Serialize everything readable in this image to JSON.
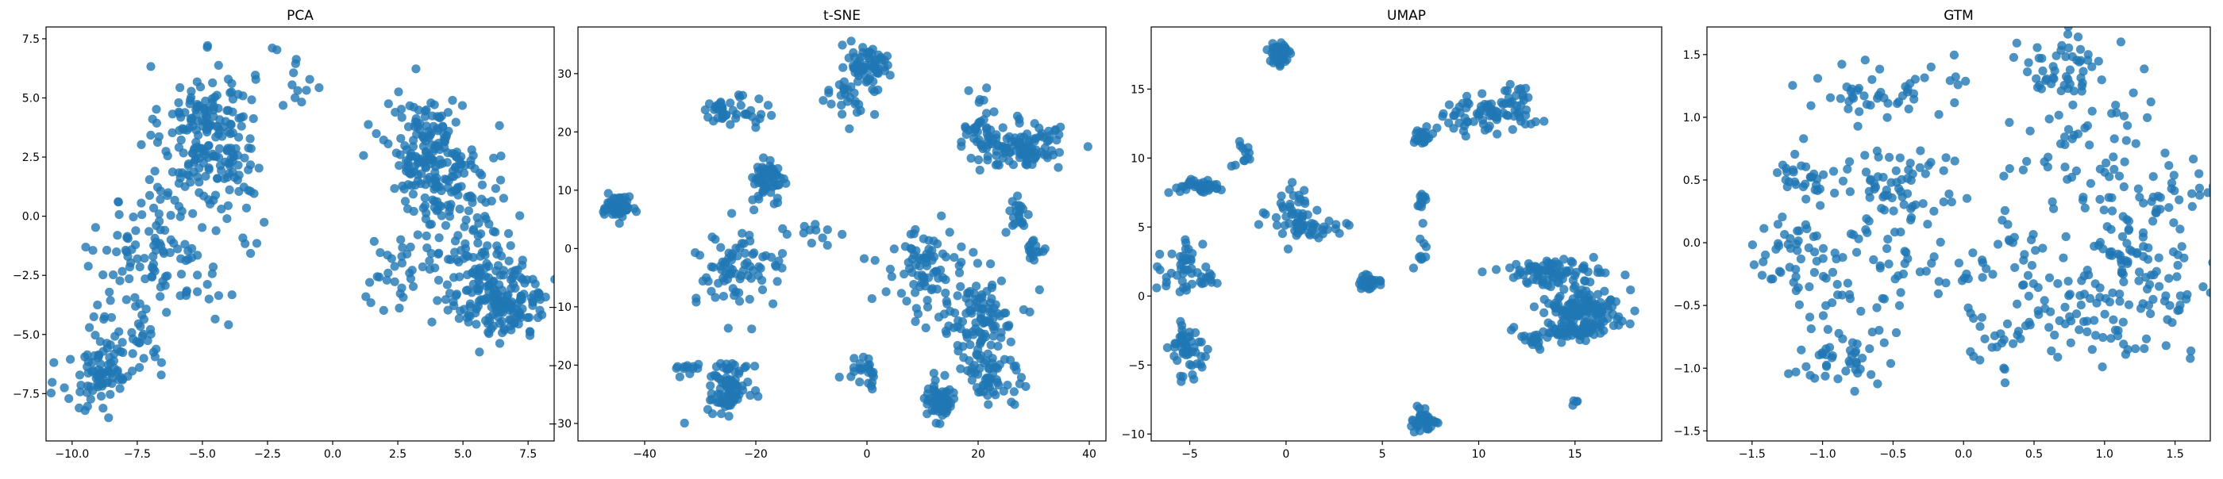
{
  "figure": {
    "panels": [
      "PCA",
      "t-SNE",
      "UMAP",
      "GTM"
    ]
  },
  "colors": {
    "points": "#1f77b4",
    "axes": "#000000",
    "background": "#ffffff"
  },
  "chart_data": [
    {
      "type": "scatter",
      "title": "PCA",
      "xlabel": "",
      "ylabel": "",
      "xlim": [
        -11,
        8.5
      ],
      "ylim": [
        -9.5,
        8
      ],
      "xticks": [
        -10.0,
        -7.5,
        -5.0,
        -2.5,
        0.0,
        2.5,
        5.0,
        7.5
      ],
      "xtick_labels": [
        "−10.0",
        "−7.5",
        "−5.0",
        "−2.5",
        "0.0",
        "2.5",
        "5.0",
        "7.5"
      ],
      "yticks": [
        -7.5,
        -5.0,
        -2.5,
        0.0,
        2.5,
        5.0,
        7.5
      ],
      "ytick_labels": [
        "−7.5",
        "−5.0",
        "−2.5",
        "0.0",
        "2.5",
        "5.0",
        "7.5"
      ],
      "grid": false,
      "clusters": [
        {
          "cx": -4.8,
          "cy": 3.6,
          "sx": 0.9,
          "sy": 1.4,
          "n": 180
        },
        {
          "cx": -6.5,
          "cy": -1.5,
          "sx": 1.2,
          "sy": 1.8,
          "n": 120
        },
        {
          "cx": -9.0,
          "cy": -6.8,
          "sx": 0.7,
          "sy": 0.8,
          "n": 70
        },
        {
          "cx": -7.7,
          "cy": -4.8,
          "sx": 0.9,
          "sy": 1.2,
          "n": 40
        },
        {
          "cx": -3.5,
          "cy": 0.5,
          "sx": 0.7,
          "sy": 1.5,
          "n": 20
        },
        {
          "cx": -1.4,
          "cy": 5.4,
          "sx": 0.5,
          "sy": 0.9,
          "n": 12
        },
        {
          "cx": 3.8,
          "cy": 2.6,
          "sx": 0.9,
          "sy": 1.2,
          "n": 190
        },
        {
          "cx": 5.2,
          "cy": -1.0,
          "sx": 0.9,
          "sy": 1.4,
          "n": 90
        },
        {
          "cx": 6.5,
          "cy": -3.5,
          "sx": 0.9,
          "sy": 0.8,
          "n": 170
        },
        {
          "cx": 2.6,
          "cy": -2.2,
          "sx": 0.6,
          "sy": 0.9,
          "n": 30
        }
      ]
    },
    {
      "type": "scatter",
      "title": "t-SNE",
      "xlabel": "",
      "ylabel": "",
      "xlim": [
        -52,
        43
      ],
      "ylim": [
        -33,
        38
      ],
      "xticks": [
        -40,
        -20,
        0,
        20,
        40
      ],
      "xtick_labels": [
        "−40",
        "−20",
        "0",
        "20",
        "40"
      ],
      "yticks": [
        -30,
        -20,
        -10,
        0,
        10,
        20,
        30
      ],
      "ytick_labels": [
        "−30",
        "−20",
        "−10",
        "0",
        "10",
        "20",
        "30"
      ],
      "grid": false,
      "clusters": [
        {
          "cx": -45,
          "cy": 7,
          "sx": 1.2,
          "sy": 1.0,
          "n": 60
        },
        {
          "cx": -25,
          "cy": 23.5,
          "sx": 2.8,
          "sy": 1.2,
          "n": 45
        },
        {
          "cx": -17.5,
          "cy": 12,
          "sx": 1.4,
          "sy": 1.6,
          "n": 60
        },
        {
          "cx": -3,
          "cy": 26,
          "sx": 2.2,
          "sy": 2.4,
          "n": 30
        },
        {
          "cx": 0,
          "cy": 31.5,
          "sx": 2.0,
          "sy": 2.0,
          "n": 60
        },
        {
          "cx": 20,
          "cy": 21.5,
          "sx": 1.5,
          "sy": 2.5,
          "n": 30
        },
        {
          "cx": 28,
          "cy": 17.5,
          "sx": 4.5,
          "sy": 2.0,
          "n": 110
        },
        {
          "cx": -23,
          "cy": -4,
          "sx": 4.0,
          "sy": 3.2,
          "n": 80
        },
        {
          "cx": -25,
          "cy": -23.5,
          "sx": 2.0,
          "sy": 2.3,
          "n": 80
        },
        {
          "cx": -31,
          "cy": -20.5,
          "sx": 2.5,
          "sy": 0.6,
          "n": 12
        },
        {
          "cx": 0,
          "cy": -21,
          "sx": 1.2,
          "sy": 1.2,
          "n": 25
        },
        {
          "cx": 10,
          "cy": -4,
          "sx": 4.0,
          "sy": 3.5,
          "n": 80
        },
        {
          "cx": 20,
          "cy": -12,
          "sx": 3.5,
          "sy": 3.5,
          "n": 100
        },
        {
          "cx": 13,
          "cy": -26,
          "sx": 1.6,
          "sy": 1.8,
          "n": 60
        },
        {
          "cx": 22,
          "cy": -22,
          "sx": 2.8,
          "sy": 3.0,
          "n": 60
        },
        {
          "cx": 27,
          "cy": 6,
          "sx": 1.0,
          "sy": 2.0,
          "n": 20
        },
        {
          "cx": 30.5,
          "cy": -0.5,
          "sx": 0.8,
          "sy": 1.2,
          "n": 15
        },
        {
          "cx": -11,
          "cy": 2,
          "sx": 4.0,
          "sy": 1.0,
          "n": 12
        }
      ]
    },
    {
      "type": "scatter",
      "title": "UMAP",
      "xlabel": "",
      "ylabel": "",
      "xlim": [
        -7,
        19.5
      ],
      "ylim": [
        -10.5,
        19.5
      ],
      "xticks": [
        -5,
        0,
        5,
        10,
        15
      ],
      "xtick_labels": [
        "−5",
        "0",
        "5",
        "10",
        "15"
      ],
      "yticks": [
        -10,
        -5,
        0,
        5,
        10,
        15
      ],
      "ytick_labels": [
        "−10",
        "−5",
        "0",
        "5",
        "10",
        "15"
      ],
      "grid": false,
      "clusters": [
        {
          "cx": -0.3,
          "cy": 17.5,
          "sx": 0.3,
          "sy": 0.5,
          "n": 60
        },
        {
          "cx": 9.5,
          "cy": 13.0,
          "sx": 1.0,
          "sy": 0.7,
          "n": 50
        },
        {
          "cx": 11.8,
          "cy": 13.6,
          "sx": 0.6,
          "sy": 0.8,
          "n": 40
        },
        {
          "cx": -2.2,
          "cy": 10.2,
          "sx": 0.3,
          "sy": 0.6,
          "n": 12
        },
        {
          "cx": 7.0,
          "cy": 11.5,
          "sx": 0.3,
          "sy": 0.3,
          "n": 20
        },
        {
          "cx": -4.5,
          "cy": 8.0,
          "sx": 0.7,
          "sy": 0.3,
          "n": 35
        },
        {
          "cx": 0.4,
          "cy": 6.0,
          "sx": 0.6,
          "sy": 0.8,
          "n": 40
        },
        {
          "cx": 1.5,
          "cy": 5.0,
          "sx": 1.0,
          "sy": 0.3,
          "n": 30
        },
        {
          "cx": 4.2,
          "cy": 1.0,
          "sx": 0.3,
          "sy": 0.3,
          "n": 30
        },
        {
          "cx": 7.0,
          "cy": 6.8,
          "sx": 0.2,
          "sy": 0.3,
          "n": 12
        },
        {
          "cx": 7.0,
          "cy": 3.0,
          "sx": 0.2,
          "sy": 0.8,
          "n": 10
        },
        {
          "cx": -5.2,
          "cy": 2.0,
          "sx": 0.6,
          "sy": 1.1,
          "n": 40
        },
        {
          "cx": -5.0,
          "cy": -4.0,
          "sx": 0.5,
          "sy": 1.0,
          "n": 50
        },
        {
          "cx": -4.0,
          "cy": 1.2,
          "sx": 0.3,
          "sy": 0.3,
          "n": 10
        },
        {
          "cx": 7.2,
          "cy": -9.0,
          "sx": 0.3,
          "sy": 0.4,
          "n": 40
        },
        {
          "cx": 13.5,
          "cy": 1.7,
          "sx": 1.3,
          "sy": 0.4,
          "n": 80
        },
        {
          "cx": 15.5,
          "cy": -0.8,
          "sx": 1.0,
          "sy": 0.8,
          "n": 120
        },
        {
          "cx": 15.0,
          "cy": -2.5,
          "sx": 1.0,
          "sy": 0.4,
          "n": 60
        },
        {
          "cx": 13.0,
          "cy": -3.2,
          "sx": 0.4,
          "sy": 0.3,
          "n": 15
        },
        {
          "cx": 15.0,
          "cy": -7.8,
          "sx": 0.1,
          "sy": 0.2,
          "n": 4
        }
      ]
    },
    {
      "type": "scatter",
      "title": "GTM",
      "xlabel": "",
      "ylabel": "",
      "xlim": [
        -1.82,
        1.75
      ],
      "ylim": [
        -1.58,
        1.72
      ],
      "xticks": [
        -1.5,
        -1.0,
        -0.5,
        0.0,
        0.5,
        1.0,
        1.5
      ],
      "xtick_labels": [
        "−1.5",
        "−1.0",
        "−0.5",
        "0.0",
        "0.5",
        "1.0",
        "1.5"
      ],
      "yticks": [
        -1.5,
        -1.0,
        -0.5,
        0.0,
        0.5,
        1.0,
        1.5
      ],
      "ytick_labels": [
        "−1.5",
        "−1.0",
        "−0.5",
        "0.0",
        "0.5",
        "1.0",
        "1.5"
      ],
      "grid": false,
      "clusters": [
        {
          "cx": -0.7,
          "cy": 1.2,
          "sx": 0.25,
          "sy": 0.12,
          "n": 45
        },
        {
          "cx": -0.5,
          "cy": 0.45,
          "sx": 0.2,
          "sy": 0.2,
          "n": 70
        },
        {
          "cx": -1.15,
          "cy": 0.5,
          "sx": 0.1,
          "sy": 0.12,
          "n": 30
        },
        {
          "cx": -1.3,
          "cy": -0.05,
          "sx": 0.15,
          "sy": 0.15,
          "n": 25
        },
        {
          "cx": -0.8,
          "cy": -0.8,
          "sx": 0.15,
          "sy": 0.15,
          "n": 40
        },
        {
          "cx": -0.9,
          "cy": -0.25,
          "sx": 0.25,
          "sy": 0.2,
          "n": 40
        },
        {
          "cx": -0.3,
          "cy": -0.2,
          "sx": 0.25,
          "sy": 0.15,
          "n": 25
        },
        {
          "cx": 0.7,
          "cy": 1.4,
          "sx": 0.15,
          "sy": 0.15,
          "n": 50
        },
        {
          "cx": 0.8,
          "cy": 0.7,
          "sx": 0.25,
          "sy": 0.3,
          "n": 60
        },
        {
          "cx": 1.4,
          "cy": 0.25,
          "sx": 0.2,
          "sy": 0.25,
          "n": 50
        },
        {
          "cx": 1.2,
          "cy": -0.4,
          "sx": 0.25,
          "sy": 0.2,
          "n": 60
        },
        {
          "cx": 0.6,
          "cy": -0.55,
          "sx": 0.2,
          "sy": 0.15,
          "n": 40
        },
        {
          "cx": 0.3,
          "cy": -0.05,
          "sx": 0.15,
          "sy": 0.1,
          "n": 20
        },
        {
          "cx": 0.2,
          "cy": -0.75,
          "sx": 0.1,
          "sy": 0.15,
          "n": 15
        },
        {
          "cx": 0.9,
          "cy": -0.85,
          "sx": 0.3,
          "sy": 0.1,
          "n": 15
        },
        {
          "cx": -1.0,
          "cy": -1.05,
          "sx": 0.15,
          "sy": 0.05,
          "n": 10
        },
        {
          "cx": 1.2,
          "cy": 0.0,
          "sx": 0.15,
          "sy": 0.25,
          "n": 30
        },
        {
          "cx": -0.05,
          "cy": 1.35,
          "sx": 0.03,
          "sy": 0.2,
          "n": 4
        }
      ]
    }
  ]
}
